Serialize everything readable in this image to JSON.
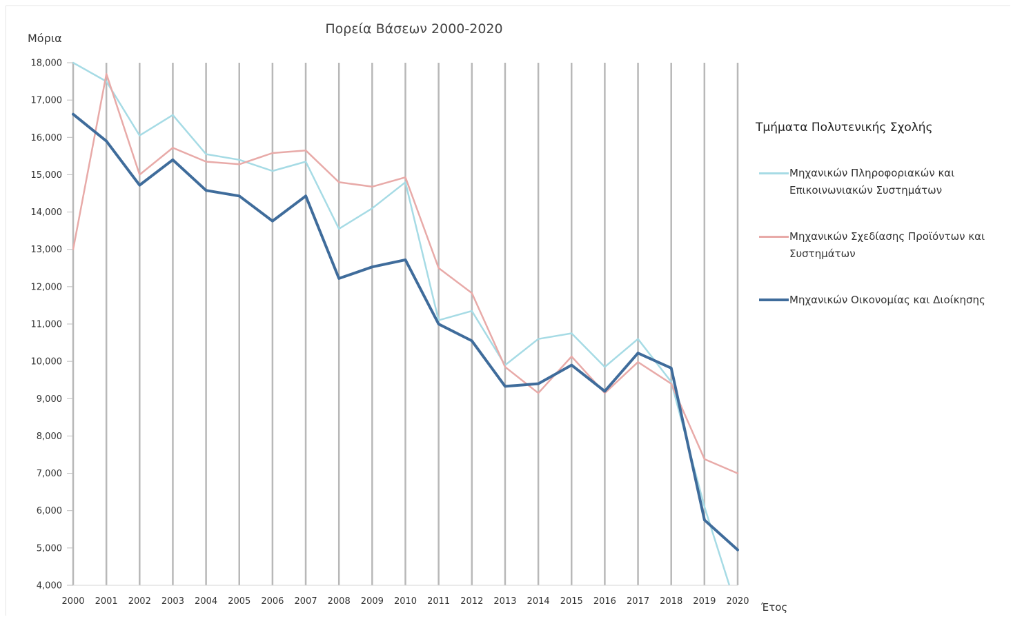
{
  "chart_data": {
    "type": "line",
    "title": "Πορεία Βάσεων 2000-2020",
    "xlabel": "Έτος",
    "ylabel": "Μόρια",
    "categories": [
      "2000",
      "2001",
      "2002",
      "2003",
      "2004",
      "2005",
      "2006",
      "2007",
      "2008",
      "2009",
      "2010",
      "2011",
      "2012",
      "2013",
      "2014",
      "2015",
      "2016",
      "2017",
      "2018",
      "2019",
      "2020"
    ],
    "ylim": [
      4000,
      18000
    ],
    "yticks": [
      4000,
      5000,
      6000,
      7000,
      8000,
      9000,
      10000,
      11000,
      12000,
      13000,
      14000,
      15000,
      16000,
      17000,
      18000
    ],
    "ytick_labels": [
      "4,000",
      "5,000",
      "6,000",
      "7,000",
      "8,000",
      "9,000",
      "10,000",
      "11,000",
      "12,000",
      "13,000",
      "14,000",
      "15,000",
      "16,000",
      "17,000",
      "18,000"
    ],
    "grid": {
      "vertical": true,
      "horizontal": false
    },
    "legend": {
      "title": "Τμήματα Πολυτενικής Σχολής",
      "position": "right"
    },
    "series": [
      {
        "name": "Μηχανικών Πληροφοριακών και Επικοινωνιακών Συστημάτων",
        "color": "#a6dbe5",
        "values": [
          18000,
          17500,
          16050,
          16600,
          15550,
          15400,
          15100,
          15350,
          13550,
          14100,
          14800,
          11100,
          11350,
          9900,
          10600,
          10750,
          9850,
          10600,
          9450,
          6100,
          3300
        ]
      },
      {
        "name": "Μηχανικών Σχεδίασης Προϊόντων και Συστημάτων",
        "color": "#e8aaa8",
        "values": [
          13000,
          17700,
          15000,
          15720,
          15350,
          15280,
          15580,
          15650,
          14800,
          14680,
          14930,
          12500,
          11830,
          9850,
          9150,
          10130,
          9150,
          9980,
          9400,
          7380,
          7000
        ]
      },
      {
        "name": "Μηχανικών Οικονομίας και Διοίκησης",
        "color": "#3f6c9b",
        "values": [
          16620,
          15900,
          14720,
          15400,
          14580,
          14430,
          13760,
          14430,
          12220,
          12530,
          12720,
          11000,
          10550,
          9330,
          9400,
          9900,
          9200,
          10220,
          9820,
          5750,
          4950
        ]
      }
    ]
  }
}
